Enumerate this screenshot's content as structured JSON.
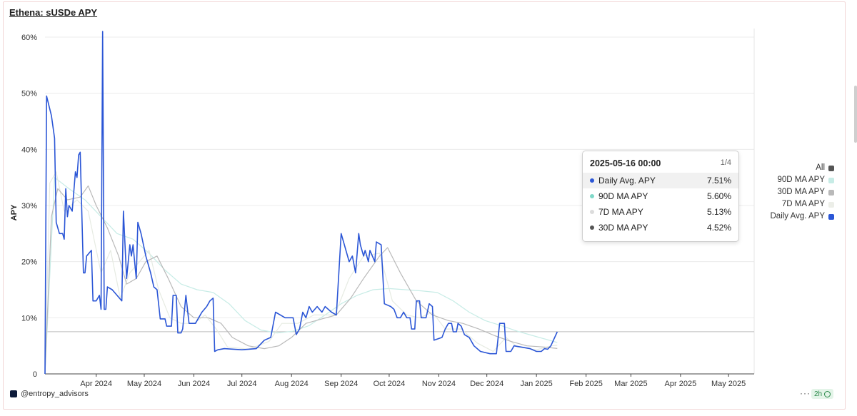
{
  "title": "Ethena: sUSDe APY",
  "footer": {
    "brand": "@entropy_advisors",
    "more": "···",
    "badge": "2h"
  },
  "colors": {
    "daily": "#2b56d6",
    "ma7": "#e9ede6",
    "ma30": "#b9b9b9",
    "ma90": "#c7ece6",
    "all": "#555555"
  },
  "legend": [
    {
      "label": "All",
      "color": "#555555"
    },
    {
      "label": "90D MA APY",
      "color": "#c7ece6"
    },
    {
      "label": "30D MA APY",
      "color": "#b9b9b9"
    },
    {
      "label": "7D MA APY",
      "color": "#eceee8"
    },
    {
      "label": "Daily Avg. APY",
      "color": "#2b56d6"
    }
  ],
  "tooltip": {
    "date": "2025-05-16 00:00",
    "page": "1/4",
    "rows": [
      {
        "name": "Daily Avg. APY",
        "value": "7.51%",
        "color": "#2b56d6"
      },
      {
        "name": "90D MA APY",
        "value": "5.60%",
        "color": "#7fd8c8"
      },
      {
        "name": "7D MA APY",
        "value": "5.13%",
        "color": "#dcdcdc"
      },
      {
        "name": "30D MA APY",
        "value": "4.52%",
        "color": "#555555"
      }
    ]
  },
  "chart_data": {
    "type": "line",
    "title": "Ethena: sUSDe APY",
    "ylabel": "APY",
    "xlabel": "",
    "ylim": [
      0,
      60
    ],
    "y_ticks": [
      0,
      10,
      20,
      30,
      40,
      50,
      60
    ],
    "y_tick_labels": [
      "0",
      "10%",
      "20%",
      "30%",
      "40%",
      "50%",
      "60%"
    ],
    "x_range": [
      "2024-02-29",
      "2025-05-17"
    ],
    "x_ticks": [
      "2024-04-01",
      "2024-05-01",
      "2024-06-01",
      "2024-07-01",
      "2024-08-01",
      "2024-09-01",
      "2024-10-01",
      "2024-11-01",
      "2024-12-01",
      "2025-01-01",
      "2025-02-01",
      "2025-03-01",
      "2025-04-01",
      "2025-05-01"
    ],
    "x_tick_labels": [
      "Apr 2024",
      "May 2024",
      "Jun 2024",
      "Jul 2024",
      "Aug 2024",
      "Sep 2024",
      "Oct 2024",
      "Nov 2024",
      "Dec 2024",
      "Jan 2025",
      "Feb 2025",
      "Mar 2025",
      "Apr 2025",
      "May 2025"
    ],
    "reference_line": 7.51,
    "series": [
      {
        "name": "Daily Avg. APY",
        "color": "#2b56d6",
        "points": [
          [
            "2024-02-29",
            0
          ],
          [
            "2024-03-01",
            49.5
          ],
          [
            "2024-03-04",
            46
          ],
          [
            "2024-03-06",
            42
          ],
          [
            "2024-03-07",
            27
          ],
          [
            "2024-03-09",
            25
          ],
          [
            "2024-03-11",
            25
          ],
          [
            "2024-03-12",
            24
          ],
          [
            "2024-03-13",
            33
          ],
          [
            "2024-03-14",
            28
          ],
          [
            "2024-03-15",
            30
          ],
          [
            "2024-03-17",
            29
          ],
          [
            "2024-03-19",
            36
          ],
          [
            "2024-03-20",
            35
          ],
          [
            "2024-03-21",
            39
          ],
          [
            "2024-03-22",
            39.5
          ],
          [
            "2024-03-24",
            18
          ],
          [
            "2024-03-25",
            18
          ],
          [
            "2024-03-26",
            21
          ],
          [
            "2024-03-29",
            22
          ],
          [
            "2024-03-30",
            13
          ],
          [
            "2024-04-01",
            13
          ],
          [
            "2024-04-03",
            14
          ],
          [
            "2024-04-04",
            11.5
          ],
          [
            "2024-04-05",
            61
          ],
          [
            "2024-04-06",
            11.5
          ],
          [
            "2024-04-07",
            11.5
          ],
          [
            "2024-04-08",
            15.5
          ],
          [
            "2024-04-11",
            15
          ],
          [
            "2024-04-14",
            14
          ],
          [
            "2024-04-17",
            13
          ],
          [
            "2024-04-18",
            29
          ],
          [
            "2024-04-20",
            17
          ],
          [
            "2024-04-22",
            23
          ],
          [
            "2024-04-23",
            21
          ],
          [
            "2024-04-24",
            23
          ],
          [
            "2024-04-25",
            20
          ],
          [
            "2024-04-26",
            17
          ],
          [
            "2024-04-27",
            27
          ],
          [
            "2024-04-29",
            25
          ],
          [
            "2024-05-02",
            21
          ],
          [
            "2024-05-05",
            18
          ],
          [
            "2024-05-07",
            15.5
          ],
          [
            "2024-05-09",
            15
          ],
          [
            "2024-05-11",
            9.8
          ],
          [
            "2024-05-14",
            9.8
          ],
          [
            "2024-05-15",
            8.5
          ],
          [
            "2024-05-18",
            8.5
          ],
          [
            "2024-05-19",
            14
          ],
          [
            "2024-05-21",
            14
          ],
          [
            "2024-05-22",
            7.3
          ],
          [
            "2024-05-24",
            7.3
          ],
          [
            "2024-05-25",
            8
          ],
          [
            "2024-05-27",
            14
          ],
          [
            "2024-05-29",
            9
          ],
          [
            "2024-05-31",
            9
          ],
          [
            "2024-06-02",
            9
          ],
          [
            "2024-06-04",
            10
          ],
          [
            "2024-06-06",
            11
          ],
          [
            "2024-06-09",
            12
          ],
          [
            "2024-06-11",
            13
          ],
          [
            "2024-06-13",
            13.5
          ],
          [
            "2024-06-14",
            4
          ],
          [
            "2024-06-16",
            4.3
          ],
          [
            "2024-06-20",
            4.5
          ],
          [
            "2024-07-01",
            4.3
          ],
          [
            "2024-07-10",
            4.5
          ],
          [
            "2024-07-15",
            6
          ],
          [
            "2024-07-19",
            6.5
          ],
          [
            "2024-07-22",
            11
          ],
          [
            "2024-07-28",
            10
          ],
          [
            "2024-08-02",
            10
          ],
          [
            "2024-08-04",
            7
          ],
          [
            "2024-08-06",
            8
          ],
          [
            "2024-08-08",
            11
          ],
          [
            "2024-08-10",
            10
          ],
          [
            "2024-08-12",
            12
          ],
          [
            "2024-08-14",
            11
          ],
          [
            "2024-08-17",
            12
          ],
          [
            "2024-08-20",
            11
          ],
          [
            "2024-08-22",
            12
          ],
          [
            "2024-08-26",
            11
          ],
          [
            "2024-08-29",
            10.5
          ],
          [
            "2024-09-01",
            25
          ],
          [
            "2024-09-04",
            22
          ],
          [
            "2024-09-06",
            20
          ],
          [
            "2024-09-08",
            21
          ],
          [
            "2024-09-10",
            18
          ],
          [
            "2024-09-12",
            25
          ],
          [
            "2024-09-13",
            23
          ],
          [
            "2024-09-15",
            21
          ],
          [
            "2024-09-16",
            22
          ],
          [
            "2024-09-18",
            20
          ],
          [
            "2024-09-19",
            22
          ],
          [
            "2024-09-22",
            20
          ],
          [
            "2024-09-23",
            23.5
          ],
          [
            "2024-09-26",
            23
          ],
          [
            "2024-09-28",
            12.5
          ],
          [
            "2024-10-02",
            12
          ],
          [
            "2024-10-04",
            11.5
          ],
          [
            "2024-10-06",
            10
          ],
          [
            "2024-10-08",
            10
          ],
          [
            "2024-10-10",
            11
          ],
          [
            "2024-10-12",
            10
          ],
          [
            "2024-10-14",
            10
          ],
          [
            "2024-10-15",
            8
          ],
          [
            "2024-10-17",
            8
          ],
          [
            "2024-10-18",
            13
          ],
          [
            "2024-10-20",
            13
          ],
          [
            "2024-10-21",
            10
          ],
          [
            "2024-10-24",
            10
          ],
          [
            "2024-10-26",
            12.5
          ],
          [
            "2024-10-28",
            12
          ],
          [
            "2024-10-29",
            6
          ],
          [
            "2024-11-03",
            6.5
          ],
          [
            "2024-11-05",
            8
          ],
          [
            "2024-11-07",
            9
          ],
          [
            "2024-11-09",
            9
          ],
          [
            "2024-11-10",
            7.5
          ],
          [
            "2024-11-12",
            7.5
          ],
          [
            "2024-11-13",
            9
          ],
          [
            "2024-11-15",
            8.5
          ],
          [
            "2024-11-17",
            7
          ],
          [
            "2024-11-20",
            6.5
          ],
          [
            "2024-11-23",
            5
          ],
          [
            "2024-11-27",
            4
          ],
          [
            "2024-12-03",
            3.6
          ],
          [
            "2024-12-07",
            3.6
          ],
          [
            "2024-12-09",
            9
          ],
          [
            "2024-12-12",
            9
          ],
          [
            "2024-12-13",
            4
          ],
          [
            "2024-12-16",
            4
          ],
          [
            "2024-12-18",
            5
          ],
          [
            "2024-12-22",
            4.8
          ],
          [
            "2024-12-28",
            4.5
          ],
          [
            "2025-01-01",
            4
          ],
          [
            "2025-01-04",
            4
          ],
          [
            "2025-01-06",
            4.5
          ],
          [
            "2025-01-08",
            4.4
          ],
          [
            "2025-01-10",
            5
          ],
          [
            "2025-01-14",
            7.5
          ]
        ]
      },
      {
        "name": "7D MA APY",
        "color": "#e6ebe2",
        "points": [
          [
            "2024-02-29",
            0
          ],
          [
            "2024-03-03",
            34
          ],
          [
            "2024-03-07",
            36
          ],
          [
            "2024-03-12",
            29
          ],
          [
            "2024-03-20",
            31
          ],
          [
            "2024-03-27",
            29
          ],
          [
            "2024-04-04",
            18
          ],
          [
            "2024-04-10",
            22
          ],
          [
            "2024-04-16",
            13.5
          ],
          [
            "2024-04-22",
            18
          ],
          [
            "2024-04-28",
            20
          ],
          [
            "2024-05-04",
            22
          ],
          [
            "2024-05-10",
            15
          ],
          [
            "2024-05-17",
            10
          ],
          [
            "2024-05-24",
            9
          ],
          [
            "2024-06-01",
            9
          ],
          [
            "2024-06-08",
            10.5
          ],
          [
            "2024-06-15",
            8
          ],
          [
            "2024-06-22",
            4.8
          ],
          [
            "2024-07-05",
            4.4
          ],
          [
            "2024-07-18",
            5.8
          ],
          [
            "2024-07-26",
            9
          ],
          [
            "2024-08-05",
            9
          ],
          [
            "2024-08-15",
            10.5
          ],
          [
            "2024-08-28",
            10.5
          ],
          [
            "2024-09-06",
            17
          ],
          [
            "2024-09-15",
            21
          ],
          [
            "2024-09-25",
            21.5
          ],
          [
            "2024-10-03",
            13
          ],
          [
            "2024-10-12",
            10.5
          ],
          [
            "2024-10-20",
            10
          ],
          [
            "2024-10-28",
            11
          ],
          [
            "2024-11-05",
            8
          ],
          [
            "2024-11-15",
            8
          ],
          [
            "2024-11-25",
            5.5
          ],
          [
            "2024-12-05",
            4
          ],
          [
            "2024-12-13",
            6.5
          ],
          [
            "2024-12-20",
            4.8
          ],
          [
            "2025-01-01",
            4.3
          ],
          [
            "2025-01-10",
            5
          ],
          [
            "2025-01-14",
            5.1
          ]
        ]
      },
      {
        "name": "30D MA APY",
        "color": "#b9b9b9",
        "points": [
          [
            "2024-02-29",
            0
          ],
          [
            "2024-03-04",
            28
          ],
          [
            "2024-03-08",
            33
          ],
          [
            "2024-03-14",
            31
          ],
          [
            "2024-03-22",
            31.5
          ],
          [
            "2024-03-27",
            33.5
          ],
          [
            "2024-04-01",
            30
          ],
          [
            "2024-04-08",
            26
          ],
          [
            "2024-04-15",
            21
          ],
          [
            "2024-04-20",
            16
          ],
          [
            "2024-04-26",
            17
          ],
          [
            "2024-05-02",
            20
          ],
          [
            "2024-05-09",
            21
          ],
          [
            "2024-05-16",
            17
          ],
          [
            "2024-05-24",
            12
          ],
          [
            "2024-06-01",
            10
          ],
          [
            "2024-06-10",
            10
          ],
          [
            "2024-06-18",
            9
          ],
          [
            "2024-06-25",
            6.5
          ],
          [
            "2024-07-05",
            5
          ],
          [
            "2024-07-15",
            4.5
          ],
          [
            "2024-07-24",
            5
          ],
          [
            "2024-08-01",
            6.5
          ],
          [
            "2024-08-10",
            9
          ],
          [
            "2024-08-20",
            9.8
          ],
          [
            "2024-08-29",
            10.5
          ],
          [
            "2024-09-07",
            13.5
          ],
          [
            "2024-09-15",
            17
          ],
          [
            "2024-09-25",
            21
          ],
          [
            "2024-09-30",
            22.5
          ],
          [
            "2024-10-08",
            18
          ],
          [
            "2024-10-18",
            13
          ],
          [
            "2024-10-28",
            10.5
          ],
          [
            "2024-11-07",
            9.5
          ],
          [
            "2024-11-16",
            9
          ],
          [
            "2024-11-26",
            8
          ],
          [
            "2024-12-06",
            6.8
          ],
          [
            "2024-12-16",
            5.8
          ],
          [
            "2024-12-26",
            5
          ],
          [
            "2025-01-05",
            4.8
          ],
          [
            "2025-01-14",
            4.52
          ]
        ]
      },
      {
        "name": "90D MA APY",
        "color": "#c7ece6",
        "points": [
          [
            "2024-02-29",
            0
          ],
          [
            "2024-03-06",
            35
          ],
          [
            "2024-03-15",
            33
          ],
          [
            "2024-03-25",
            31
          ],
          [
            "2024-04-04",
            28
          ],
          [
            "2024-04-14",
            25
          ],
          [
            "2024-04-24",
            24
          ],
          [
            "2024-05-04",
            21.5
          ],
          [
            "2024-05-14",
            18.5
          ],
          [
            "2024-05-24",
            16
          ],
          [
            "2024-06-03",
            15
          ],
          [
            "2024-06-13",
            14.5
          ],
          [
            "2024-06-23",
            12.5
          ],
          [
            "2024-07-03",
            9.5
          ],
          [
            "2024-07-13",
            7.8
          ],
          [
            "2024-07-23",
            7.3
          ],
          [
            "2024-08-02",
            7.6
          ],
          [
            "2024-08-12",
            8.6
          ],
          [
            "2024-08-22",
            10.5
          ],
          [
            "2024-09-01",
            12.5
          ],
          [
            "2024-09-11",
            14
          ],
          [
            "2024-09-21",
            15
          ],
          [
            "2024-10-01",
            15.2
          ],
          [
            "2024-10-11",
            15
          ],
          [
            "2024-10-21",
            14.8
          ],
          [
            "2024-10-31",
            14.5
          ],
          [
            "2024-11-10",
            13
          ],
          [
            "2024-11-20",
            11
          ],
          [
            "2024-11-30",
            9.5
          ],
          [
            "2024-12-10",
            8.6
          ],
          [
            "2024-12-20",
            7.6
          ],
          [
            "2024-12-30",
            6.8
          ],
          [
            "2025-01-09",
            6
          ],
          [
            "2025-01-14",
            5.6
          ]
        ]
      }
    ]
  }
}
